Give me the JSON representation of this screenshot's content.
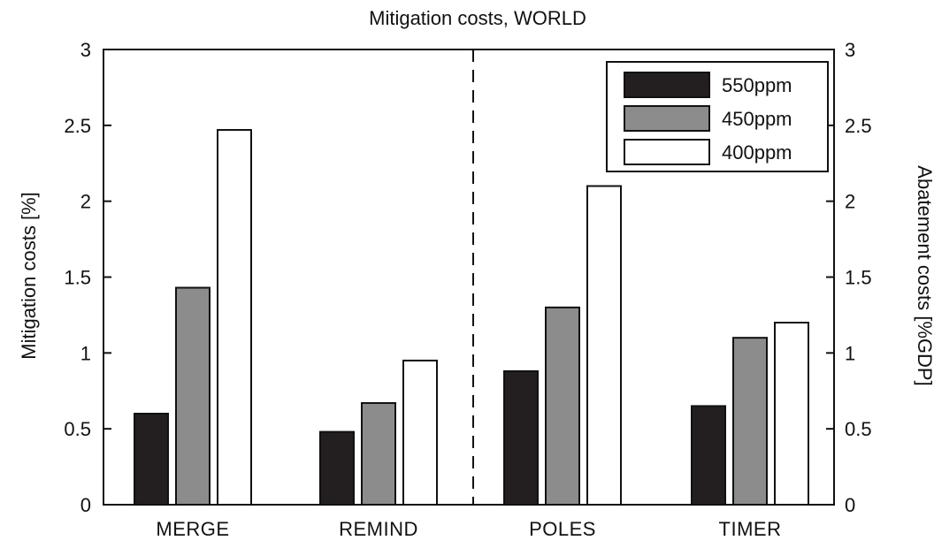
{
  "chart_data": {
    "type": "bar",
    "title": "Mitigation costs, WORLD",
    "ylabel": "Mitigation costs [%]",
    "ylabel_right": "Abatement costs [%GDP]",
    "xlabel": "",
    "categories": [
      "MERGE",
      "REMIND",
      "POLES",
      "TIMER"
    ],
    "series": [
      {
        "name": "550ppm",
        "values": [
          0.6,
          0.48,
          0.88,
          0.65
        ],
        "color": "#231f20"
      },
      {
        "name": "450ppm",
        "values": [
          1.43,
          0.67,
          1.3,
          1.1
        ],
        "color": "#8c8c8c"
      },
      {
        "name": "400ppm",
        "values": [
          2.47,
          0.95,
          2.1,
          1.2
        ],
        "color": "#ffffff"
      }
    ],
    "ylim": [
      0,
      3
    ],
    "yticks": [
      "0",
      "0.5",
      "1",
      "1.5",
      "2",
      "2.5",
      "3"
    ],
    "divider_after_category": 1,
    "legend_position": "top-right",
    "grid": false
  }
}
